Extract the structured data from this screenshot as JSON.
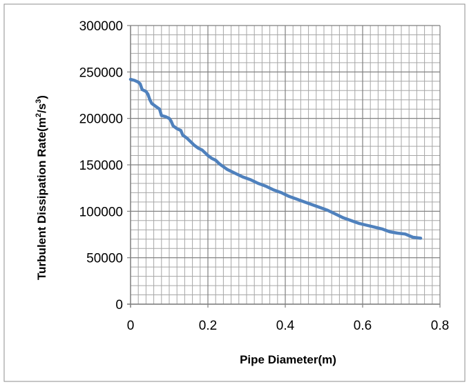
{
  "chart_data": {
    "type": "line",
    "xlabel": "Pipe Diameter(m)",
    "ylabel": {
      "prefix": "Turbulent Dissipation Rate(m",
      "sup1": "2",
      "mid": "/s",
      "sup2": "3",
      "suffix": ")"
    },
    "xlim": [
      0,
      0.8
    ],
    "ylim": [
      0,
      300000
    ],
    "x_ticks": [
      "0",
      "0.2",
      "0.4",
      "0.6",
      "0.8"
    ],
    "y_ticks": [
      "0",
      "50000",
      "100000",
      "150000",
      "200000",
      "250000",
      "300000"
    ],
    "grid": true,
    "legend": "none",
    "series": [
      {
        "color": "#4f81bd",
        "points": [
          [
            0.0,
            242000
          ],
          [
            0.01,
            241000
          ],
          [
            0.02,
            239000
          ],
          [
            0.025,
            237000
          ],
          [
            0.03,
            231000
          ],
          [
            0.04,
            229000
          ],
          [
            0.045,
            226000
          ],
          [
            0.05,
            220000
          ],
          [
            0.055,
            216000
          ],
          [
            0.065,
            213000
          ],
          [
            0.075,
            210000
          ],
          [
            0.08,
            203000
          ],
          [
            0.09,
            202000
          ],
          [
            0.1,
            200000
          ],
          [
            0.105,
            197000
          ],
          [
            0.11,
            192000
          ],
          [
            0.12,
            189000
          ],
          [
            0.13,
            187000
          ],
          [
            0.135,
            182000
          ],
          [
            0.145,
            179000
          ],
          [
            0.155,
            175000
          ],
          [
            0.165,
            171000
          ],
          [
            0.175,
            168000
          ],
          [
            0.185,
            166000
          ],
          [
            0.195,
            162000
          ],
          [
            0.2,
            160000
          ],
          [
            0.21,
            157000
          ],
          [
            0.22,
            155000
          ],
          [
            0.23,
            151000
          ],
          [
            0.24,
            148000
          ],
          [
            0.25,
            145000
          ],
          [
            0.27,
            141000
          ],
          [
            0.29,
            137000
          ],
          [
            0.31,
            134000
          ],
          [
            0.33,
            130000
          ],
          [
            0.35,
            127000
          ],
          [
            0.37,
            123000
          ],
          [
            0.39,
            120000
          ],
          [
            0.41,
            116000
          ],
          [
            0.43,
            113000
          ],
          [
            0.45,
            110000
          ],
          [
            0.47,
            107000
          ],
          [
            0.49,
            104000
          ],
          [
            0.51,
            101000
          ],
          [
            0.53,
            97000
          ],
          [
            0.55,
            93000
          ],
          [
            0.57,
            90000
          ],
          [
            0.59,
            87000
          ],
          [
            0.61,
            85000
          ],
          [
            0.63,
            83000
          ],
          [
            0.65,
            81000
          ],
          [
            0.67,
            78000
          ],
          [
            0.69,
            76500
          ],
          [
            0.71,
            75500
          ],
          [
            0.73,
            72000
          ],
          [
            0.75,
            71000
          ]
        ]
      }
    ]
  }
}
